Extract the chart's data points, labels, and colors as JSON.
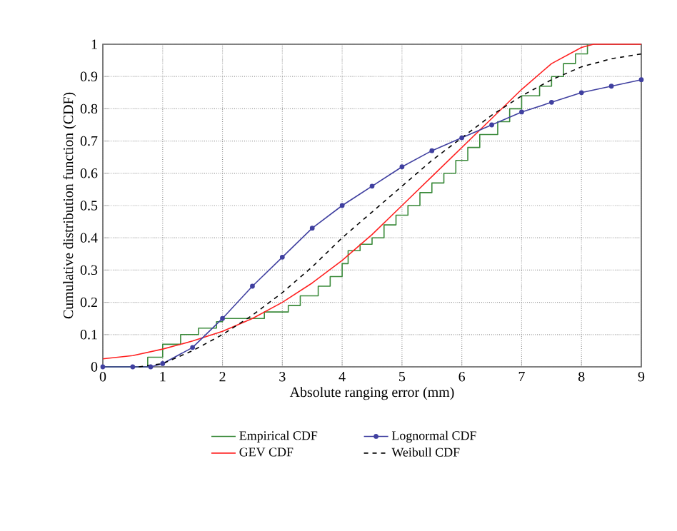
{
  "chart_data": {
    "type": "line",
    "xlabel": "Absolute ranging error (mm)",
    "ylabel": "Cumulative distribution function (CDF)",
    "xlim": [
      0,
      9
    ],
    "ylim": [
      0,
      1
    ],
    "xticks": [
      0,
      1,
      2,
      3,
      4,
      5,
      6,
      7,
      8,
      9
    ],
    "yticks": [
      0,
      0.1,
      0.2,
      0.3,
      0.4,
      0.5,
      0.6,
      0.7,
      0.8,
      0.9,
      1
    ],
    "grid": true,
    "legend": "bottom",
    "series": [
      {
        "name": "Empirical CDF",
        "type": "step",
        "color": "#3a8a3a",
        "line_style": "solid",
        "marker": "none",
        "x": [
          0,
          0.75,
          1.0,
          1.3,
          1.6,
          1.9,
          2.0,
          2.7,
          3.1,
          3.3,
          3.6,
          3.8,
          4.0,
          4.1,
          4.3,
          4.5,
          4.7,
          4.9,
          5.1,
          5.3,
          5.5,
          5.7,
          5.9,
          6.1,
          6.3,
          6.6,
          6.8,
          7.0,
          7.3,
          7.5,
          7.7,
          7.9,
          8.1
        ],
        "values": [
          0,
          0.03,
          0.07,
          0.1,
          0.12,
          0.14,
          0.15,
          0.17,
          0.19,
          0.22,
          0.25,
          0.28,
          0.32,
          0.36,
          0.38,
          0.4,
          0.44,
          0.47,
          0.5,
          0.54,
          0.57,
          0.6,
          0.64,
          0.68,
          0.72,
          0.76,
          0.8,
          0.84,
          0.87,
          0.9,
          0.94,
          0.97,
          1.0
        ]
      },
      {
        "name": "GEV CDF",
        "color": "#ff2020",
        "line_style": "solid",
        "marker": "none",
        "x": [
          0,
          0.5,
          1,
          1.5,
          2,
          2.5,
          3,
          3.5,
          4,
          4.5,
          5,
          5.5,
          6,
          6.5,
          7,
          7.5,
          8,
          8.2,
          9
        ],
        "values": [
          0.025,
          0.035,
          0.055,
          0.08,
          0.11,
          0.15,
          0.2,
          0.26,
          0.33,
          0.41,
          0.5,
          0.59,
          0.68,
          0.77,
          0.86,
          0.94,
          0.99,
          1.0,
          1.0
        ]
      },
      {
        "name": "Lognormal CDF",
        "color": "#4040a0",
        "line_style": "solid",
        "marker": "circle",
        "x": [
          0,
          0.5,
          0.8,
          1,
          1.5,
          2,
          2.5,
          3,
          3.5,
          4,
          4.5,
          5,
          5.5,
          6,
          6.5,
          7,
          7.5,
          8,
          8.5,
          9
        ],
        "values": [
          0,
          0,
          0,
          0.01,
          0.06,
          0.15,
          0.25,
          0.34,
          0.43,
          0.5,
          0.56,
          0.62,
          0.67,
          0.71,
          0.75,
          0.79,
          0.82,
          0.85,
          0.87,
          0.89
        ]
      },
      {
        "name": "Weibull CDF",
        "color": "#000000",
        "line_style": "dashed",
        "marker": "none",
        "x": [
          0.6,
          1,
          1.5,
          2,
          2.5,
          3,
          3.5,
          4,
          4.5,
          5,
          5.5,
          6,
          6.5,
          7,
          7.5,
          8,
          8.5,
          9
        ],
        "values": [
          0,
          0.01,
          0.05,
          0.1,
          0.16,
          0.23,
          0.31,
          0.4,
          0.48,
          0.56,
          0.64,
          0.71,
          0.78,
          0.84,
          0.89,
          0.93,
          0.955,
          0.97
        ]
      }
    ]
  }
}
